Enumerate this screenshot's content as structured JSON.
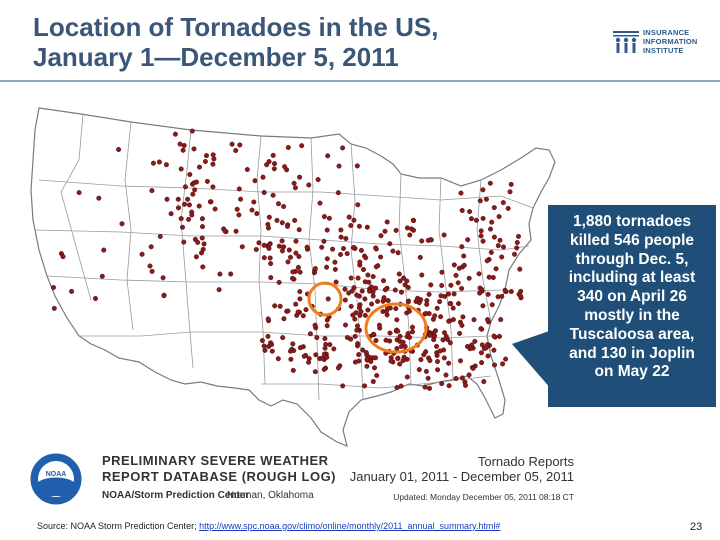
{
  "title": {
    "line1": "Location of Tornadoes in the US,",
    "line2": "January 1—December 5, 2011"
  },
  "logo": {
    "line1": "INSURANCE",
    "line2": "INFORMATION",
    "line3": "INSTITUTE",
    "icon": "iii-logo-icon",
    "color": "#2e5a8c"
  },
  "callout": {
    "lines": [
      "1,880 tornadoes",
      "killed 546 people",
      "through Dec. 5,",
      "including at least",
      "340 on April 26",
      "mostly in the",
      "Tuscaloosa area,",
      "and 130 in Joplin",
      "on May 22"
    ],
    "background": "#1f4e79"
  },
  "legend": {
    "line1": "PRELIMINARY SEVERE WEATHER",
    "line2": "REPORT DATABASE (ROUGH LOG)",
    "spc": "NOAA/Storm Prediction Center",
    "location": "Norman, Oklahoma",
    "report_title": "Tornado Reports",
    "report_dates": "January 01, 2011 - December 05, 2011",
    "updated": "Updated: Monday December 05, 2011 08:18 CT",
    "noaa_text": "NOAA"
  },
  "source": {
    "prefix": "Source: NOAA Storm Prediction Center; ",
    "link": "http://www.spc.noaa.gov/climo/online/monthly/2011_annual_summary.html#"
  },
  "page_number": "23",
  "colors": {
    "title": "#3b5778",
    "dot": "#8b1a1a",
    "highlight": "#f07c1a",
    "state_lines": "#9a9a9a"
  }
}
